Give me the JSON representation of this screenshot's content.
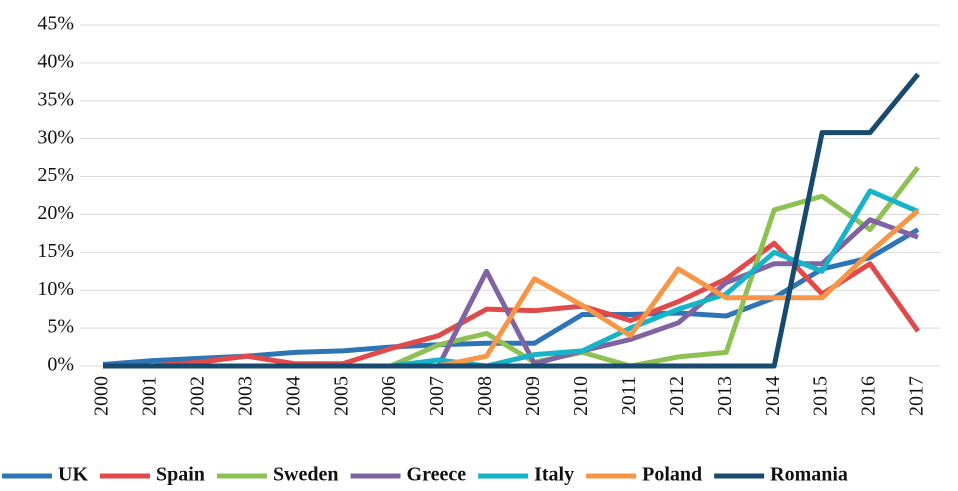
{
  "chart_data": {
    "type": "line",
    "categories": [
      "2000",
      "2001",
      "2002",
      "2003",
      "2004",
      "2005",
      "2006",
      "2007",
      "2008",
      "2009",
      "2010",
      "2011",
      "2012",
      "2013",
      "2014",
      "2015",
      "2016",
      "2017"
    ],
    "series": [
      {
        "name": "UK",
        "color": "#2e75b6",
        "values": [
          0.2,
          0.7,
          1.0,
          1.3,
          1.8,
          2.0,
          2.5,
          2.8,
          3.0,
          3.0,
          6.8,
          6.8,
          7.0,
          6.6,
          9.0,
          12.8,
          14.3,
          18.0
        ]
      },
      {
        "name": "Spain",
        "color": "#e04a4a",
        "values": [
          0,
          0,
          0.5,
          1.3,
          0.3,
          0.3,
          2.3,
          4.0,
          7.5,
          7.3,
          7.9,
          6.0,
          8.5,
          11.5,
          16.2,
          9.5,
          13.5,
          4.6
        ]
      },
      {
        "name": "Sweden",
        "color": "#8dc153",
        "values": [
          0,
          0,
          0,
          0,
          0,
          0,
          0,
          2.8,
          4.3,
          0.5,
          1.8,
          0,
          1.2,
          1.8,
          20.6,
          22.4,
          18.0,
          26.2
        ]
      },
      {
        "name": "Greece",
        "color": "#8064a2",
        "values": [
          0,
          0,
          0,
          0,
          0,
          0,
          0,
          0,
          12.5,
          0.3,
          2.0,
          3.5,
          5.7,
          11.0,
          13.5,
          13.5,
          19.3,
          17.0
        ]
      },
      {
        "name": "Italy",
        "color": "#17b3c9",
        "values": [
          0,
          0,
          0,
          0,
          0,
          0,
          0,
          0.8,
          0,
          1.5,
          2.0,
          5.0,
          7.5,
          9.5,
          15.0,
          12.5,
          23.1,
          20.4
        ]
      },
      {
        "name": "Poland",
        "color": "#f79646",
        "values": [
          0,
          0,
          0,
          0,
          0,
          0,
          0,
          0,
          1.3,
          11.5,
          8.0,
          4.0,
          12.8,
          9.0,
          9.0,
          9.0,
          15.0,
          20.5
        ]
      },
      {
        "name": "Romania",
        "color": "#174a6e",
        "values": [
          0,
          0,
          0,
          0,
          0,
          0,
          0,
          0,
          0,
          0,
          0,
          0,
          0,
          0,
          0,
          30.8,
          30.8,
          38.5
        ]
      }
    ],
    "ylim": [
      0,
      45
    ],
    "yticks": [
      {
        "value": 0,
        "label": "0%"
      },
      {
        "value": 5,
        "label": "5%"
      },
      {
        "value": 10,
        "label": "10%"
      },
      {
        "value": 15,
        "label": "15%"
      },
      {
        "value": 20,
        "label": "20%"
      },
      {
        "value": 25,
        "label": "25%"
      },
      {
        "value": 30,
        "label": "30%"
      },
      {
        "value": 35,
        "label": "35%"
      },
      {
        "value": 40,
        "label": "40%"
      },
      {
        "value": 45,
        "label": "45%"
      }
    ],
    "grid": true,
    "legend": "bottom"
  }
}
